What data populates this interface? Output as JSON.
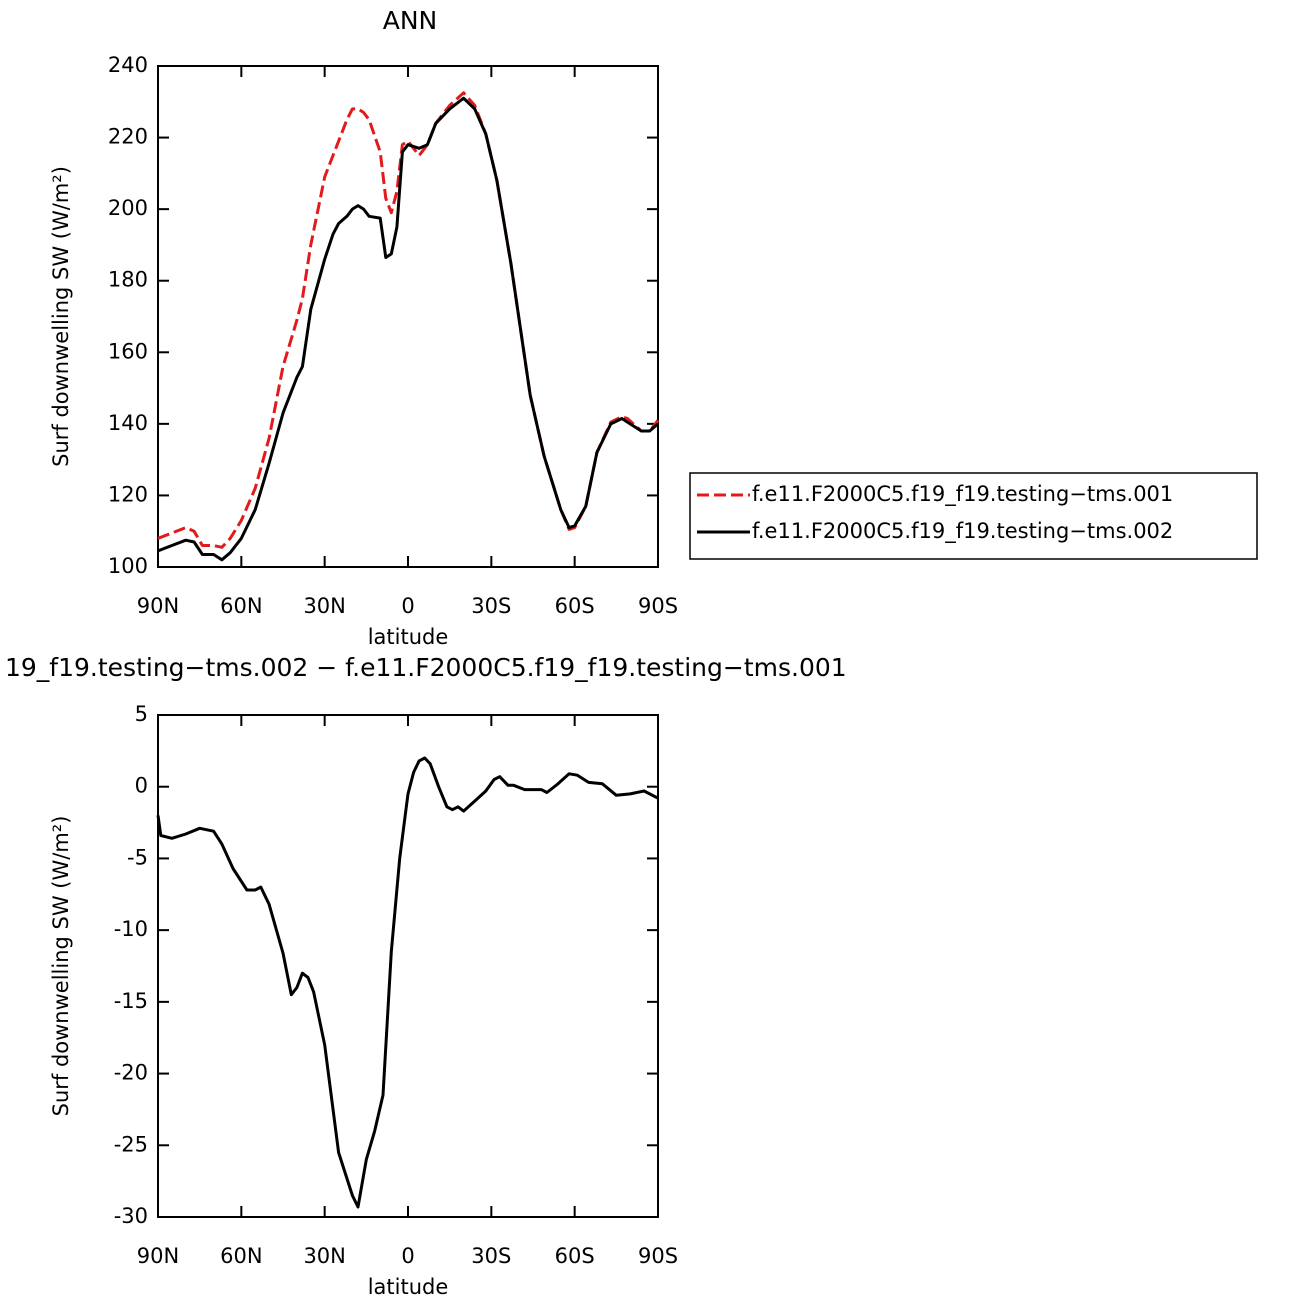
{
  "chart_data": [
    {
      "type": "line",
      "title": "ANN",
      "xlabel": "latitude",
      "ylabel": "Surf downwelling SW (W/m²)",
      "x": [
        90,
        85,
        80,
        77,
        74,
        70,
        67,
        64,
        60,
        55,
        50,
        45,
        40,
        38,
        35,
        30,
        27,
        25,
        22,
        20,
        18,
        16,
        14,
        10,
        8,
        6,
        4,
        2,
        0,
        -4,
        -7,
        -10,
        -15,
        -20,
        -24,
        -28,
        -32,
        -37,
        -44,
        -49,
        -55,
        -58,
        -60,
        -64,
        -68,
        -73,
        -77,
        -79,
        -84,
        -87,
        -90
      ],
      "series": [
        {
          "name": "f.e11.F2000C5.f19_f19.testing−tms.001",
          "color": "#e31a1c",
          "line_style": "dashed",
          "values": [
            108,
            109.5,
            111,
            110,
            106,
            106,
            105.5,
            108,
            113,
            122,
            136,
            156,
            169,
            175,
            190,
            209,
            215,
            219,
            225,
            228,
            228,
            227,
            225,
            216,
            203,
            199,
            205,
            218,
            219,
            215,
            218,
            224,
            229,
            232.5,
            229,
            221,
            208,
            185,
            148,
            131,
            116,
            110.5,
            111,
            117,
            132,
            140.5,
            142,
            141.5,
            138,
            138,
            141
          ]
        },
        {
          "name": "f.e11.F2000C5.f19_f19.testing−tms.002",
          "color": "#000000",
          "line_style": "solid",
          "values": [
            104.5,
            106,
            107.5,
            107,
            103.5,
            103.5,
            102,
            104,
            108,
            116,
            129,
            143,
            153,
            156,
            172,
            186,
            193,
            196,
            198,
            200,
            201,
            200,
            198,
            197.5,
            186.5,
            187.5,
            195,
            216,
            218,
            217,
            218,
            224,
            228,
            231,
            228,
            221,
            208,
            185,
            148,
            131,
            116,
            111,
            111.5,
            117,
            132,
            140,
            141.5,
            140.5,
            138,
            138,
            140
          ]
        }
      ],
      "xlim": [
        90,
        -90
      ],
      "xticks": [
        {
          "value": 90,
          "label": "90N"
        },
        {
          "value": 60,
          "label": "60N"
        },
        {
          "value": 30,
          "label": "30N"
        },
        0,
        {
          "value": -30,
          "label": "30S"
        },
        {
          "value": -60,
          "label": "60S"
        },
        {
          "value": -90,
          "label": "90S"
        }
      ],
      "ylim": [
        100,
        240
      ],
      "yticks": [
        100,
        120,
        140,
        160,
        180,
        200,
        220,
        240
      ],
      "legend": "right"
    },
    {
      "type": "line",
      "title": "19_f19.testing−tms.002 − f.e11.F2000C5.f19_f19.testing−tms.001",
      "xlabel": "latitude",
      "ylabel": "Surf downwelling SW (W/m²)",
      "x": [
        90,
        89,
        85,
        80,
        75,
        70,
        67,
        63,
        58,
        55,
        53,
        50,
        45,
        42,
        40,
        38,
        36,
        34,
        30,
        25,
        20,
        18,
        15,
        12,
        9,
        6,
        3,
        1,
        0,
        -2,
        -4,
        -6,
        -8,
        -11,
        -14,
        -16,
        -18,
        -20,
        -24,
        -28,
        -31,
        -33,
        -36,
        -38,
        -42,
        -48,
        -50,
        -54,
        -58,
        -61,
        -65,
        -70,
        -75,
        -80,
        -85,
        -90
      ],
      "values": [
        -2,
        -3.4,
        -3.6,
        -3.3,
        -2.9,
        -3.1,
        -4,
        -5.7,
        -7.2,
        -7.2,
        -7,
        -8.2,
        -11.6,
        -14.5,
        -14,
        -13,
        -13.3,
        -14.3,
        -18,
        -25.5,
        -28.5,
        -29.3,
        -26,
        -24,
        -21.5,
        -11.5,
        -5,
        -2,
        -0.5,
        1,
        1.8,
        2,
        1.6,
        0,
        -1.4,
        -1.6,
        -1.4,
        -1.7,
        -1,
        -0.3,
        0.5,
        0.7,
        0.1,
        0.1,
        -0.2,
        -0.2,
        -0.4,
        0.2,
        0.9,
        0.8,
        0.3,
        0.2,
        -0.6,
        -0.5,
        -0.3,
        -0.8
      ],
      "color": "#000000",
      "xlim": [
        90,
        -90
      ],
      "xticks": [
        {
          "value": 90,
          "label": "90N"
        },
        {
          "value": 60,
          "label": "60N"
        },
        {
          "value": 30,
          "label": "30N"
        },
        0,
        {
          "value": -30,
          "label": "30S"
        },
        {
          "value": -60,
          "label": "60S"
        },
        {
          "value": -90,
          "label": "90S"
        }
      ],
      "ylim": [
        -30,
        5
      ],
      "yticks": [
        -30,
        -25,
        -20,
        -15,
        -10,
        -5,
        0,
        5
      ]
    }
  ]
}
